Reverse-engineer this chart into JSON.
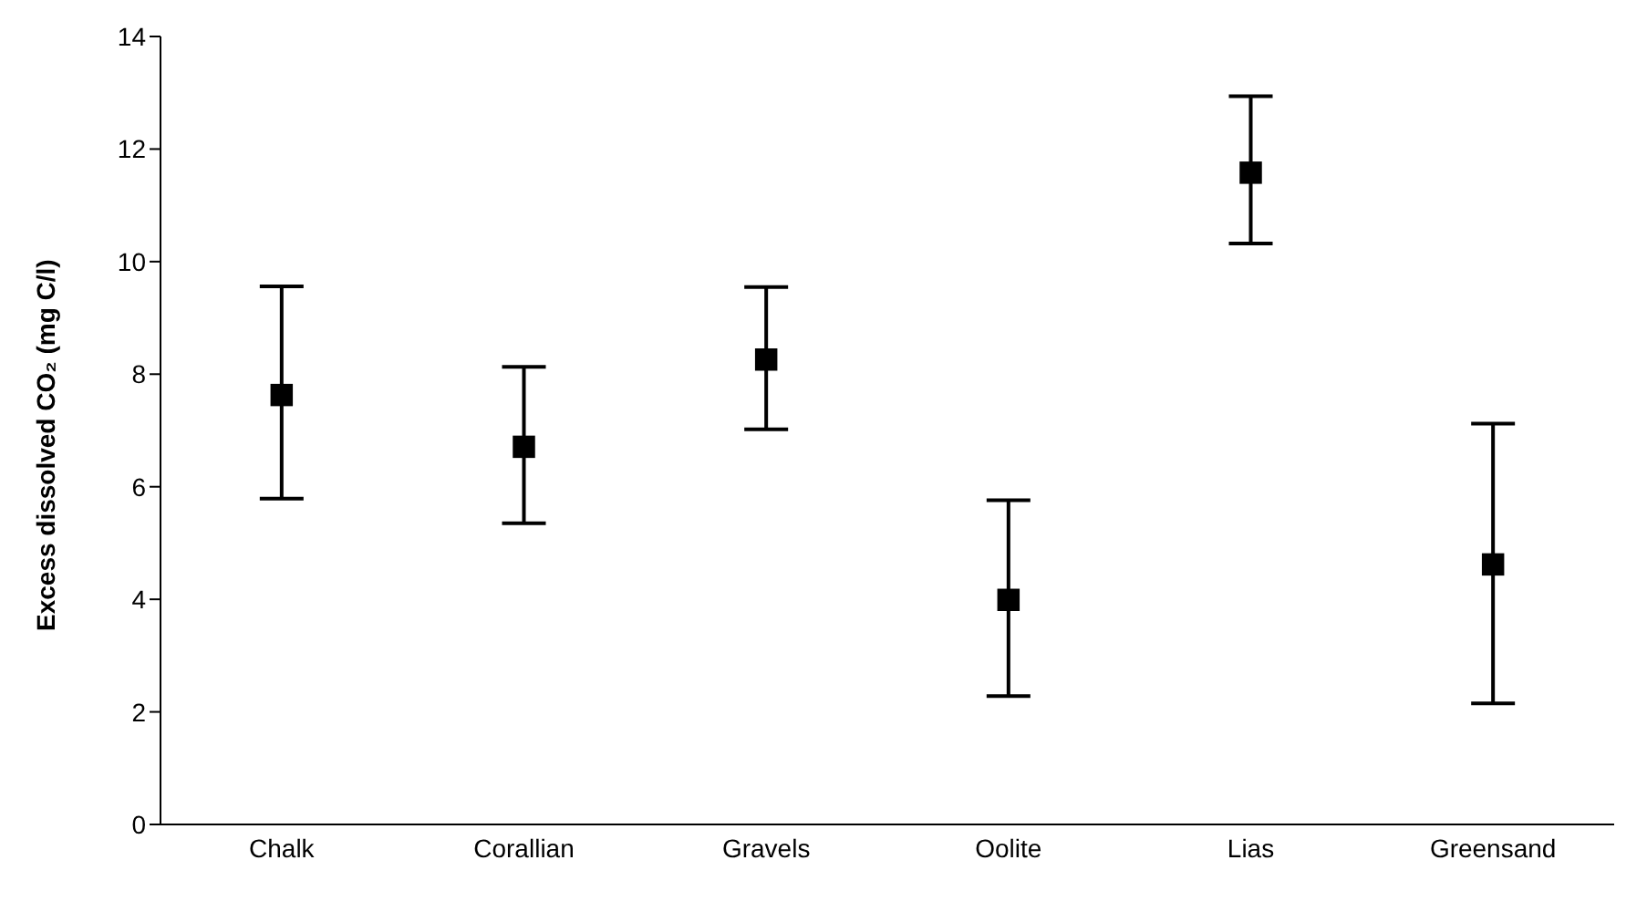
{
  "chart_data": {
    "type": "scatter",
    "ylabel": "Excess dissolved CO₂ (mg C/l)",
    "categories": [
      "Chalk",
      "Corallian",
      "Gravels",
      "Oolite",
      "Lias",
      "Greensand"
    ],
    "values": [
      7.63,
      6.71,
      8.26,
      3.99,
      11.58,
      4.62
    ],
    "errors": [
      [
        5.79,
        9.56
      ],
      [
        5.35,
        8.13
      ],
      [
        7.02,
        9.55
      ],
      [
        2.28,
        5.76
      ],
      [
        10.32,
        12.94
      ],
      [
        2.15,
        7.12
      ]
    ],
    "color": "#000000",
    "marker": "square",
    "ylim": [
      0,
      14
    ],
    "yticks": [
      0,
      2,
      4,
      6,
      8,
      10,
      12,
      14
    ],
    "grid": false,
    "legend": false
  }
}
